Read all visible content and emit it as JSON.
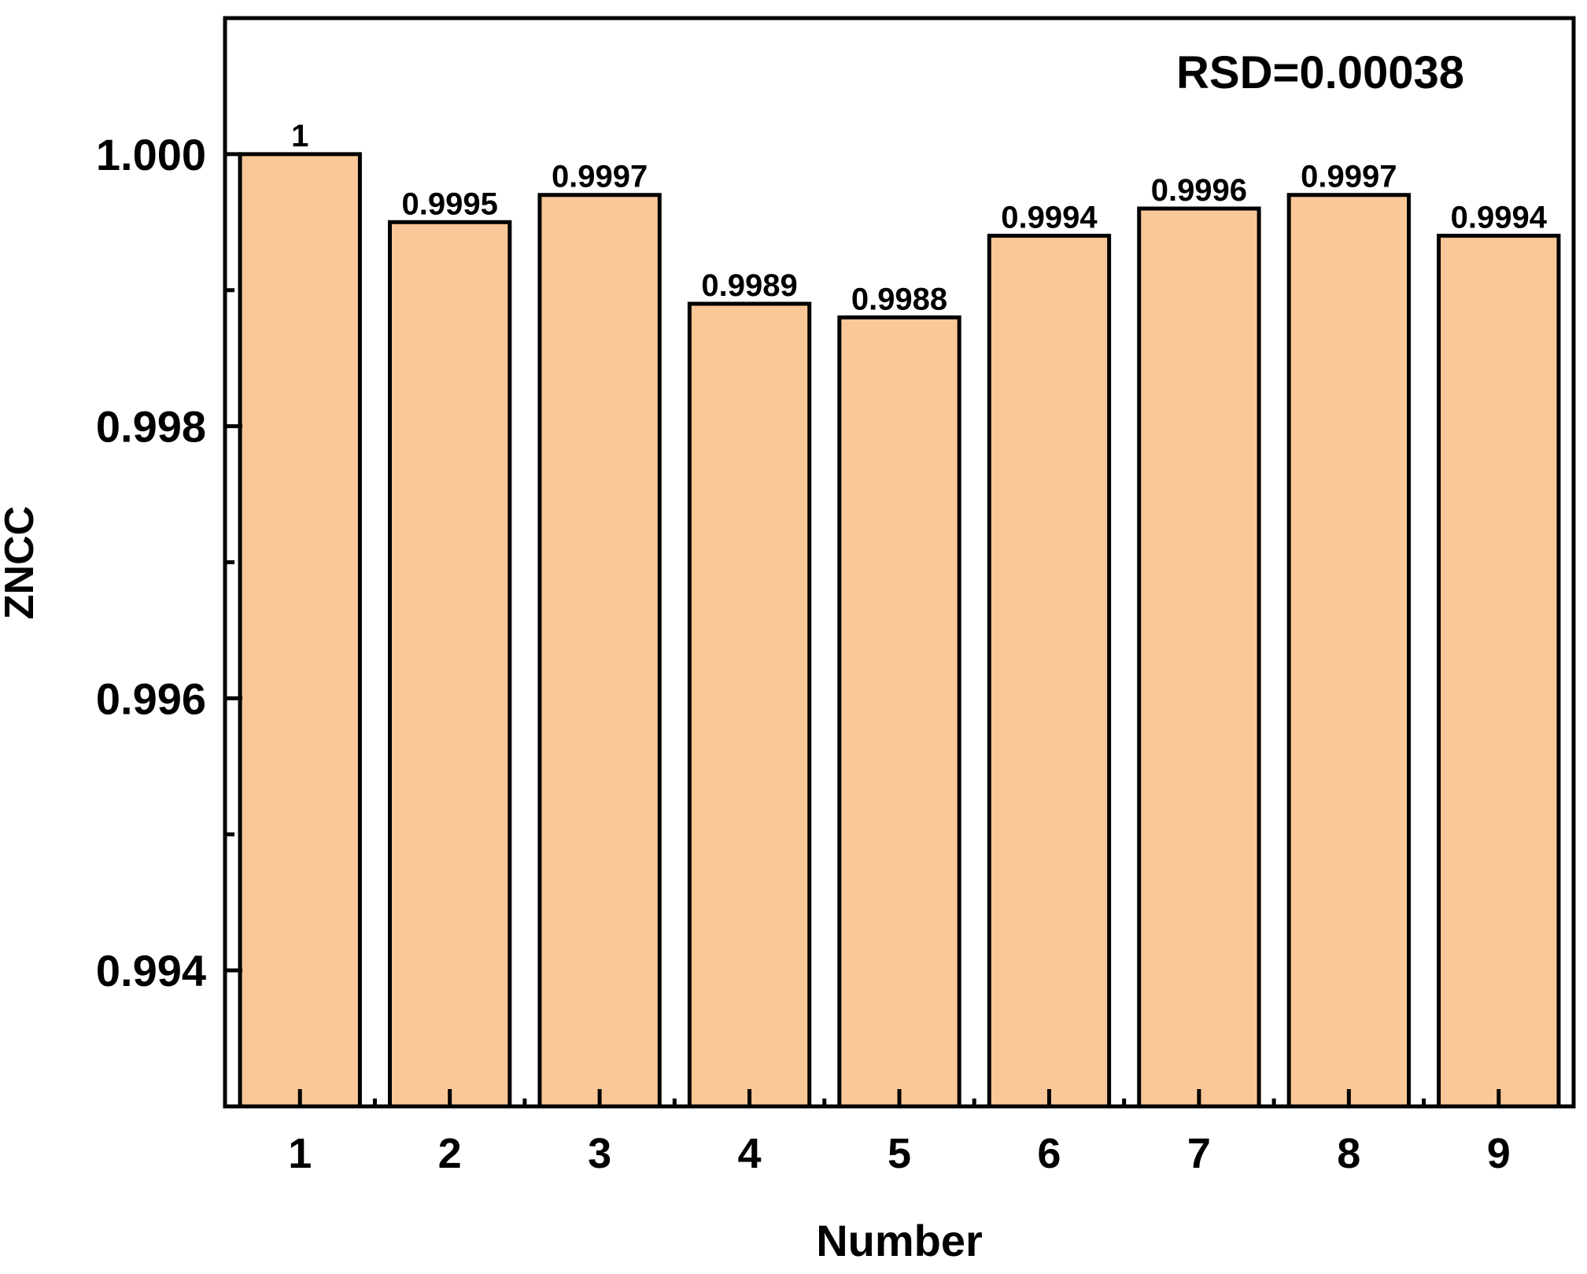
{
  "chart_data": {
    "type": "bar",
    "categories": [
      "1",
      "2",
      "3",
      "4",
      "5",
      "6",
      "7",
      "8",
      "9"
    ],
    "values": [
      1.0,
      0.9995,
      0.9997,
      0.9989,
      0.9988,
      0.9994,
      0.9996,
      0.9997,
      0.9994
    ],
    "data_labels": [
      "1",
      "0.9995",
      "0.9997",
      "0.9989",
      "0.9988",
      "0.9994",
      "0.9996",
      "0.9997",
      "0.9994"
    ],
    "title": "",
    "xlabel": "Number",
    "ylabel": "ZNCC",
    "ylim": [
      0.993,
      1.001
    ],
    "yticks": [
      0.994,
      0.996,
      0.998,
      1.0
    ],
    "ytick_labels": [
      "0.994",
      "0.996",
      "0.998",
      "1.000"
    ],
    "annotation": "RSD=0.00038",
    "grid": false,
    "legend": "none",
    "bar_color": "#FAC898",
    "edge_color": "#000000"
  }
}
